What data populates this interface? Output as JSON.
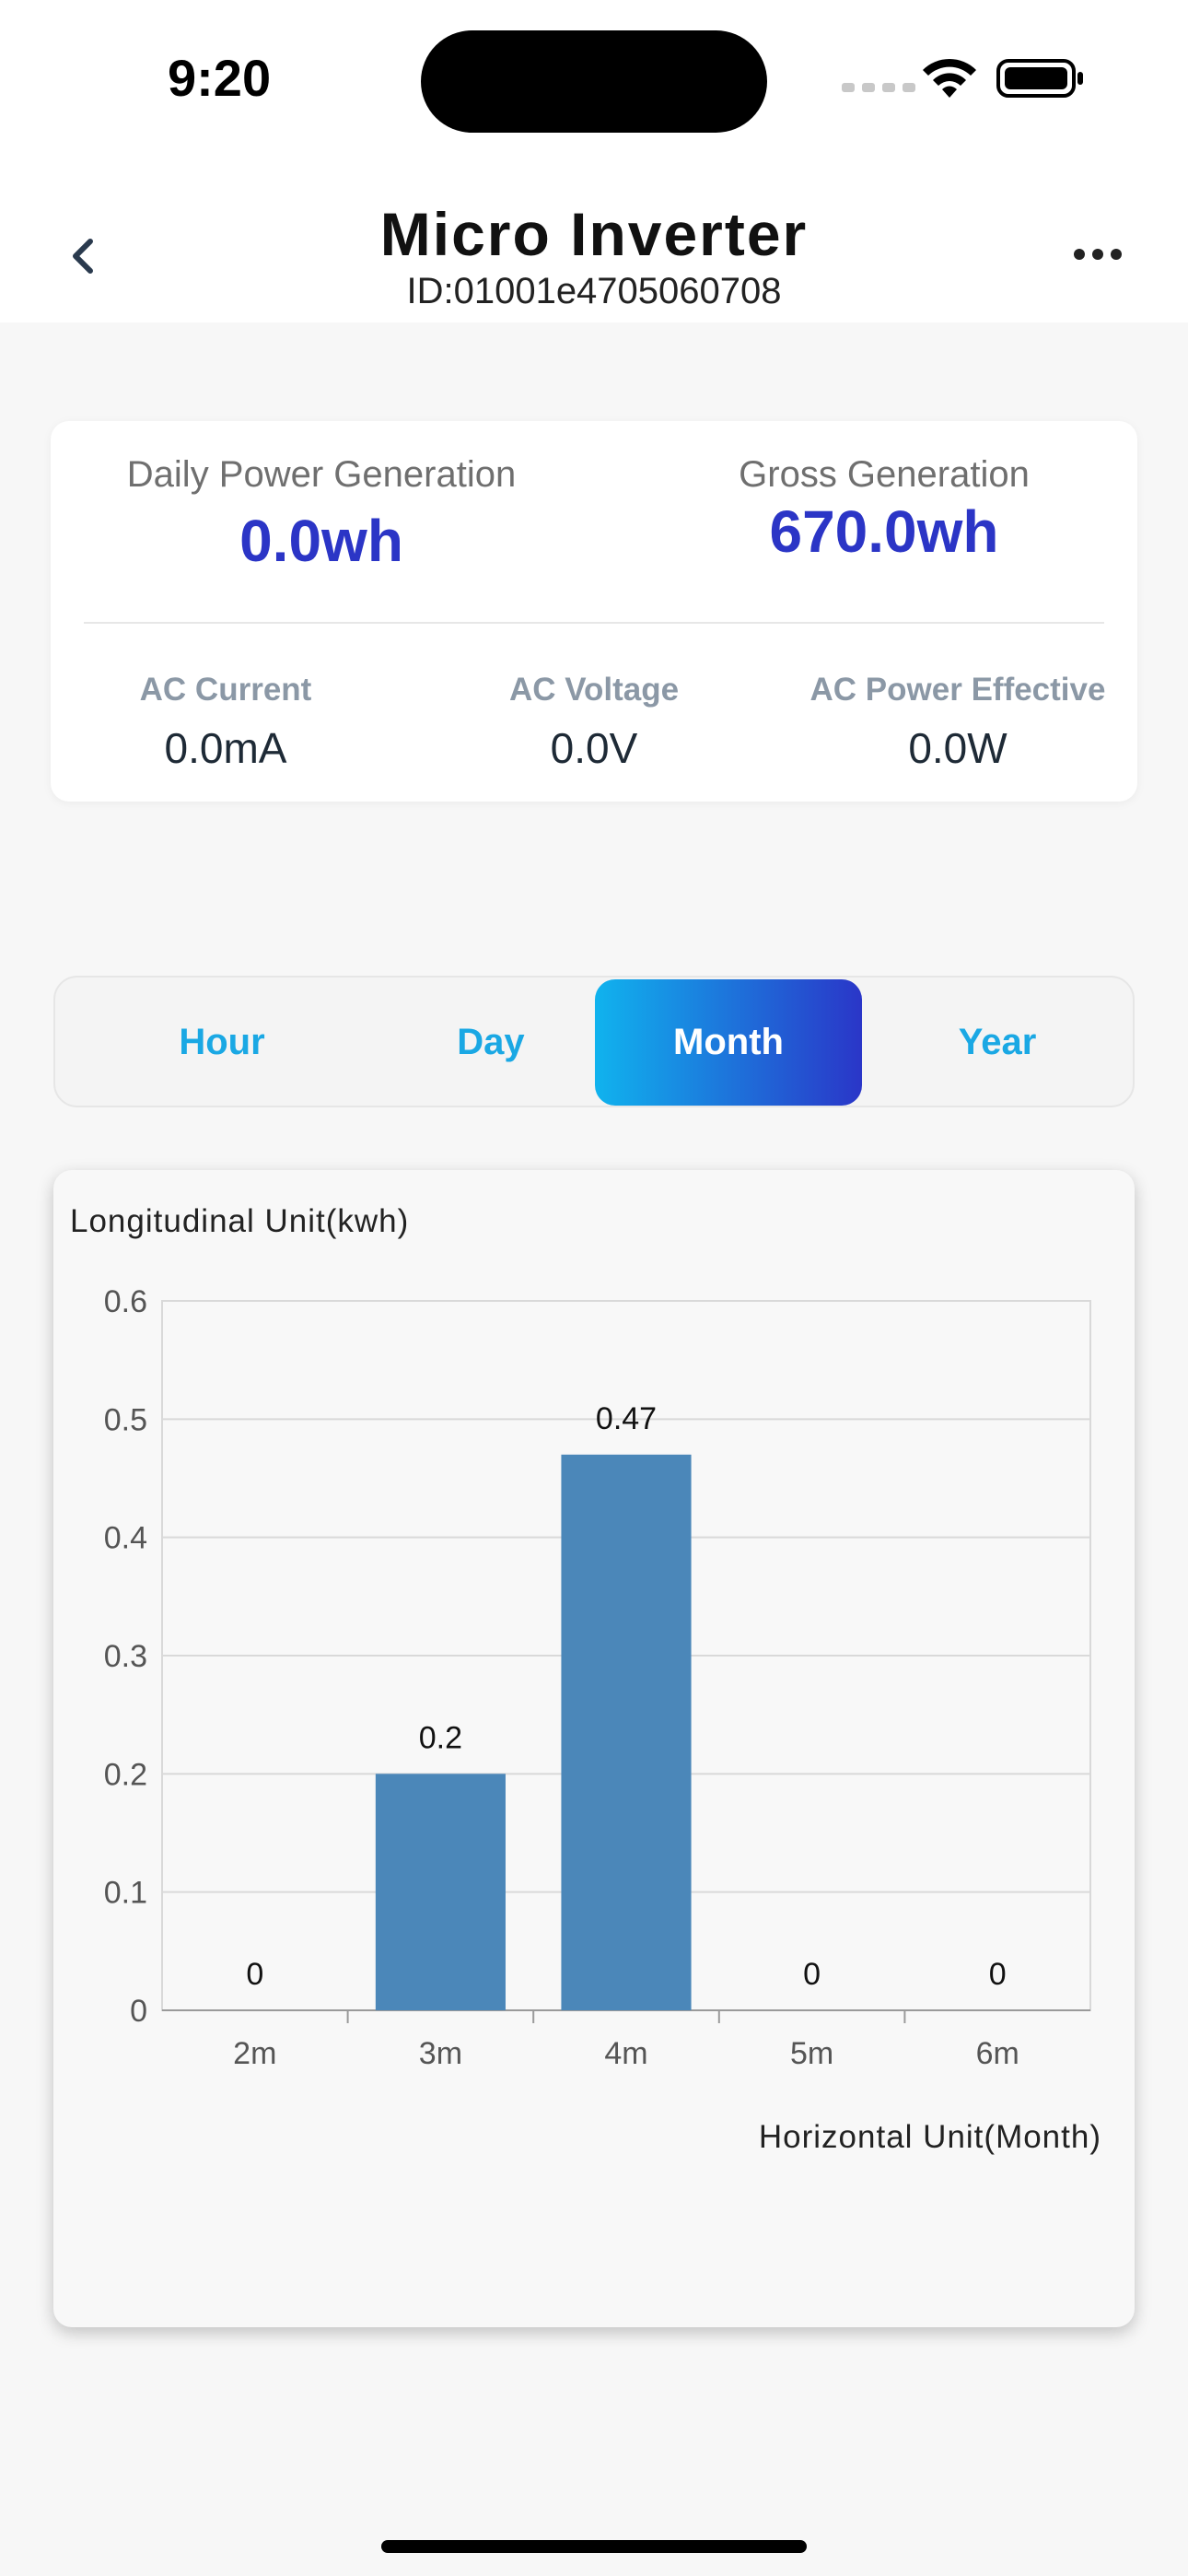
{
  "status_bar": {
    "time": "9:20"
  },
  "nav": {
    "title": "Micro Inverter",
    "subtitle": "ID:01001e4705060708",
    "back_icon": "chevron-left-icon",
    "more_icon": "ellipsis-icon"
  },
  "stats": {
    "daily_label": "Daily Power Generation",
    "daily_value": "0.0wh",
    "gross_label": "Gross Generation",
    "gross_value": "670.0wh",
    "ac_current_label": "AC Current",
    "ac_current_value": "0.0mA",
    "ac_voltage_label": "AC Voltage",
    "ac_voltage_value": "0.0V",
    "ac_power_label": "AC Power Effective",
    "ac_power_value": "0.0W"
  },
  "tabs": [
    {
      "label": "Hour",
      "active": false
    },
    {
      "label": "Day",
      "active": false
    },
    {
      "label": "Month",
      "active": true
    },
    {
      "label": "Year",
      "active": false
    }
  ],
  "colors": {
    "accent": "#2b35c6",
    "tab_text": "#1aa8e4",
    "bar": "#4b87b9",
    "gradient_start": "#10b3ee",
    "gradient_end": "#2a36c8"
  },
  "chart_data": {
    "type": "bar",
    "categories": [
      "2m",
      "3m",
      "4m",
      "5m",
      "6m"
    ],
    "values": [
      0,
      0.2,
      0.47,
      0,
      0
    ],
    "data_labels": [
      "0",
      "0.2",
      "0.47",
      "0",
      "0"
    ],
    "ylabel": "Longitudinal Unit(kwh)",
    "xlabel": "Horizontal Unit(Month)",
    "ylim": [
      0,
      0.6
    ],
    "yticks": [
      "0",
      "0.1",
      "0.2",
      "0.3",
      "0.4",
      "0.5",
      "0.6"
    ],
    "grid": true
  }
}
